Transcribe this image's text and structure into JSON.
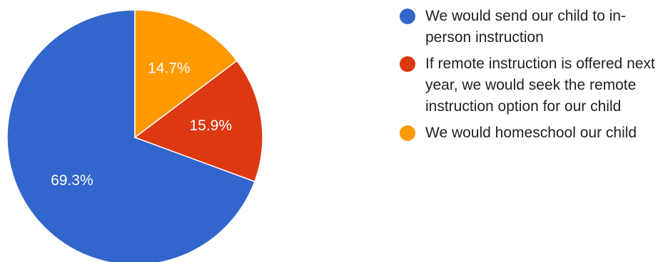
{
  "chart_data": {
    "type": "pie",
    "start_angle_deg": 90,
    "direction": "counterclockwise",
    "slices": [
      {
        "label": "We would send our child to in-person instruction",
        "display": "69.3%",
        "value": 69.3,
        "color": "#3366cc"
      },
      {
        "label": "If remote instruction is offered next year, we would seek the remote instruction option for our child",
        "display": "15.9%",
        "value": 15.9,
        "color": "#dc3912"
      },
      {
        "label": "We would homeschool our child",
        "display": "14.7%",
        "value": 14.7,
        "color": "#ff9900"
      }
    ],
    "legend": {
      "position": "right"
    }
  }
}
